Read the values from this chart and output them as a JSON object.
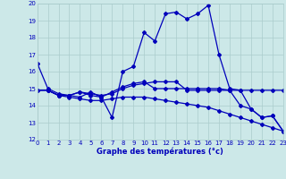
{
  "title": "Graphe des températures (°c)",
  "bg_color": "#cce8e8",
  "grid_color": "#aacccc",
  "line_color": "#0000bb",
  "xlim": [
    0,
    23
  ],
  "ylim": [
    12,
    20
  ],
  "xticks": [
    0,
    1,
    2,
    3,
    4,
    5,
    6,
    7,
    8,
    9,
    10,
    11,
    12,
    13,
    14,
    15,
    16,
    17,
    18,
    19,
    20,
    21,
    22,
    23
  ],
  "yticks": [
    12,
    13,
    14,
    15,
    16,
    17,
    18,
    19,
    20
  ],
  "series": [
    {
      "x": [
        0,
        1,
        2,
        3,
        4,
        5,
        6,
        7,
        8,
        9,
        10,
        11,
        12,
        13,
        14,
        15,
        16,
        17,
        18,
        19,
        20,
        21,
        22,
        23
      ],
      "y": [
        16.5,
        15.0,
        14.7,
        14.6,
        14.5,
        14.8,
        14.5,
        13.3,
        16.0,
        16.3,
        18.3,
        17.8,
        19.4,
        19.5,
        19.1,
        19.4,
        19.9,
        17.0,
        15.0,
        14.9,
        13.8,
        13.3,
        13.4,
        12.5
      ]
    },
    {
      "x": [
        0,
        1,
        2,
        3,
        4,
        5,
        6,
        7,
        8,
        9,
        10,
        11,
        12,
        13,
        14,
        15,
        16,
        17,
        18,
        19,
        20,
        21,
        22,
        23
      ],
      "y": [
        14.9,
        14.9,
        14.6,
        14.6,
        14.8,
        14.7,
        14.6,
        14.7,
        15.0,
        15.2,
        15.3,
        15.4,
        15.4,
        15.4,
        14.9,
        14.9,
        14.9,
        14.9,
        14.9,
        14.9,
        14.9,
        14.9,
        14.9,
        14.9
      ]
    },
    {
      "x": [
        0,
        1,
        2,
        3,
        4,
        5,
        6,
        7,
        8,
        9,
        10,
        11,
        12,
        13,
        14,
        15,
        16,
        17,
        18,
        19,
        20,
        21,
        22,
        23
      ],
      "y": [
        14.9,
        14.9,
        14.6,
        14.5,
        14.4,
        14.3,
        14.3,
        14.4,
        14.5,
        14.5,
        14.5,
        14.4,
        14.3,
        14.2,
        14.1,
        14.0,
        13.9,
        13.7,
        13.5,
        13.3,
        13.1,
        12.9,
        12.7,
        12.5
      ]
    },
    {
      "x": [
        1,
        2,
        3,
        4,
        5,
        6,
        7,
        8,
        9,
        10,
        11,
        12,
        13,
        14,
        15,
        16,
        17,
        18,
        19,
        20,
        21,
        22,
        23
      ],
      "y": [
        14.9,
        14.6,
        14.6,
        14.8,
        14.6,
        14.5,
        14.8,
        15.1,
        15.3,
        15.4,
        15.0,
        15.0,
        15.0,
        15.0,
        15.0,
        15.0,
        15.0,
        14.9,
        14.0,
        13.8,
        13.3,
        13.4,
        12.5
      ]
    }
  ],
  "marker": "D",
  "markersize": 2.0,
  "linewidth": 0.9
}
